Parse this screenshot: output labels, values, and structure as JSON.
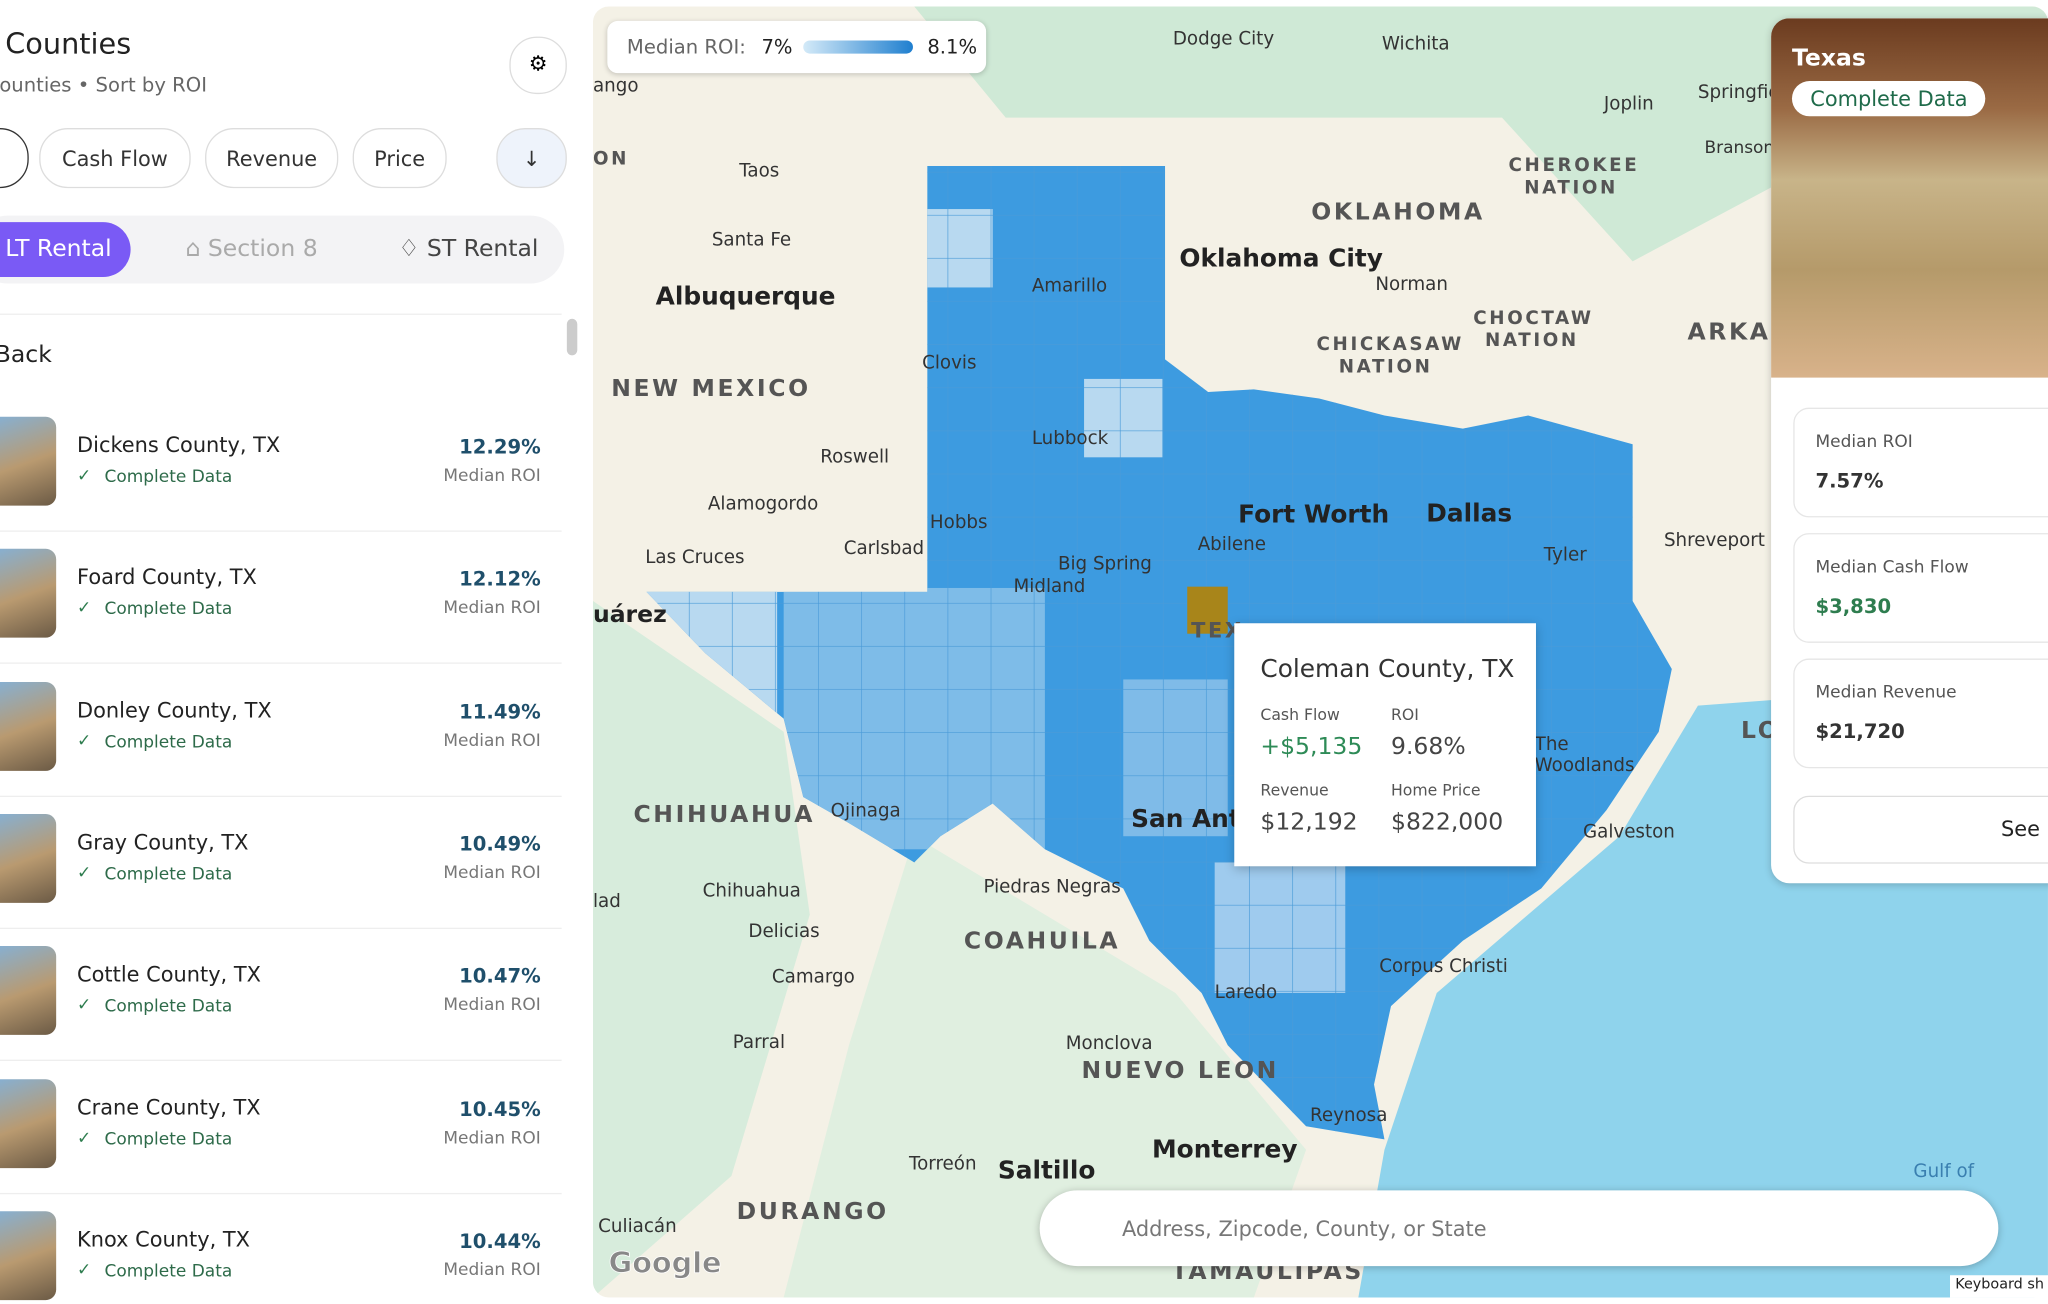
{
  "header": {
    "title": "Counties",
    "subtitle": "Counties • Sort by ROI"
  },
  "sort_buttons": [
    "Cash Flow",
    "Revenue",
    "Price"
  ],
  "tabs": [
    "LT Rental",
    "Section 8",
    "ST Rental"
  ],
  "back": "Back",
  "counties": [
    {
      "name": "Dickens County, TX",
      "status": "Complete Data",
      "roi": "12.29%",
      "roi_label": "Median ROI"
    },
    {
      "name": "Foard County, TX",
      "status": "Complete Data",
      "roi": "12.12%",
      "roi_label": "Median ROI"
    },
    {
      "name": "Donley County, TX",
      "status": "Complete Data",
      "roi": "11.49%",
      "roi_label": "Median ROI"
    },
    {
      "name": "Gray County, TX",
      "status": "Complete Data",
      "roi": "10.49%",
      "roi_label": "Median ROI"
    },
    {
      "name": "Cottle County, TX",
      "status": "Complete Data",
      "roi": "10.47%",
      "roi_label": "Median ROI"
    },
    {
      "name": "Crane County, TX",
      "status": "Complete Data",
      "roi": "10.45%",
      "roi_label": "Median ROI"
    },
    {
      "name": "Knox County, TX",
      "status": "Complete Data",
      "roi": "10.44%",
      "roi_label": "Median ROI"
    }
  ],
  "legend": {
    "label": "Median ROI:",
    "min": "7%",
    "max": "8.1%"
  },
  "tooltip": {
    "title": "Coleman County, TX",
    "cash_flow_label": "Cash Flow",
    "cash_flow": "+$5,135",
    "roi_label": "ROI",
    "roi": "9.68%",
    "revenue_label": "Revenue",
    "revenue": "$12,192",
    "price_label": "Home Price",
    "price": "$822,000"
  },
  "state_panel": {
    "title": "Texas",
    "badge": "Complete Data",
    "stats": [
      {
        "label": "Median ROI",
        "value": "7.57%"
      },
      {
        "label": "Median Cash Flow",
        "value": "$3,830"
      },
      {
        "label": "Median Revenue",
        "value": "$21,720"
      }
    ],
    "button": "See"
  },
  "search_placeholder": "Address, Zipcode, County, or State",
  "map_labels": [
    "Dodge City",
    "Wichita",
    "Joplin",
    "Springfie",
    "Branson",
    "Taos",
    "Santa Fe",
    "Albuquerque",
    "Amarillo",
    "OKLAHOMA",
    "Oklahoma City",
    "Norman",
    "CHEROKEE",
    "NATION",
    "Clovis",
    "NEW MEXICO",
    "Roswell",
    "Lubbock",
    "Alamogordo",
    "Hobbs",
    "Carlsbad",
    "Las Cruces",
    "Big Spring",
    "Midland",
    "Abilene",
    "Fort Worth",
    "Dallas",
    "Tyler",
    "Shreveport",
    "CHICKASAW",
    "NATION",
    "CHOCTAW",
    "NATION",
    "ARKAN",
    "uárez",
    "TEX",
    "CHIHUAHUA",
    "Ojinaga",
    "San Anto",
    "Chihuahua",
    "Delicias",
    "Camargo",
    "Parral",
    "Piedras Negras",
    "COAHUILA",
    "Monclova",
    "NUEVO LEON",
    "Laredo",
    "Corpus Christi",
    "The",
    "Woodlands",
    "Galveston",
    "Reynosa",
    "Monterrey",
    "Saltillo",
    "Torreón",
    "DURANGO",
    "Culiacán",
    "TAMAULIPAS",
    "Gulf of",
    "LO",
    "ango",
    "ON",
    "lad",
    "Google"
  ],
  "attribution": "Keyboard sh"
}
